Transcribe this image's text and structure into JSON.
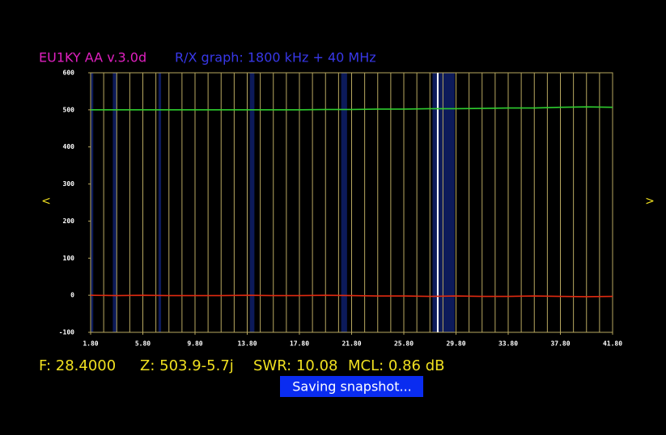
{
  "chart_data": {
    "type": "line",
    "title": "EU1KY AA v.3.0d",
    "subtitle": "R/X graph: 1800 kHz + 40 MHz",
    "x": [
      1.8,
      3.8,
      5.8,
      7.8,
      9.8,
      11.8,
      13.8,
      15.8,
      17.8,
      19.8,
      21.8,
      23.8,
      25.8,
      27.8,
      29.8,
      31.8,
      33.8,
      35.8,
      37.8,
      39.8,
      41.8
    ],
    "series": [
      {
        "name": "R",
        "color": "#2ecc2e",
        "values": [
          500,
          500,
          500,
          500,
          500,
          500,
          500,
          500,
          500,
          501,
          501,
          502,
          502,
          503,
          503,
          504,
          505,
          505,
          507,
          508,
          507
        ]
      },
      {
        "name": "X",
        "color": "#e02a10",
        "values": [
          0,
          -1,
          0,
          -1,
          -1,
          -1,
          0,
          -1,
          -1,
          0,
          -1,
          -2,
          -2,
          -3,
          -2,
          -3,
          -3,
          -2,
          -3,
          -4,
          -3
        ]
      }
    ],
    "xlim": [
      1.8,
      41.8
    ],
    "xticks": [
      {
        "value": 1.8,
        "label": "1.80"
      },
      {
        "value": 5.8,
        "label": "5.80"
      },
      {
        "value": 9.8,
        "label": "9.80"
      },
      {
        "value": 13.8,
        "label": "13.80"
      },
      {
        "value": 17.8,
        "label": "17.80"
      },
      {
        "value": 21.8,
        "label": "21.80"
      },
      {
        "value": 25.8,
        "label": "25.80"
      },
      {
        "value": 29.8,
        "label": "29.80"
      },
      {
        "value": 33.8,
        "label": "33.80"
      },
      {
        "value": 37.8,
        "label": "37.80"
      },
      {
        "value": 41.8,
        "label": "41.80"
      }
    ],
    "xgrid_step": 1,
    "ylim": [
      -100,
      600
    ],
    "yticks": [
      -100,
      0,
      100,
      200,
      300,
      400,
      500,
      600
    ],
    "bands": [
      [
        1.8,
        2.0
      ],
      [
        3.5,
        3.8
      ],
      [
        7.0,
        7.2
      ],
      [
        14.0,
        14.35
      ],
      [
        21.0,
        21.45
      ],
      [
        28.0,
        29.7
      ]
    ],
    "band_color": "#0c1a5a",
    "cursor_x": 28.4,
    "grid_color": "#b8a860"
  },
  "nav": {
    "left": "<",
    "right": ">"
  },
  "status": {
    "frequency": "F: 28.4000",
    "impedance": "Z: 503.9-5.7j",
    "swr": "SWR: 10.08",
    "mcl": "MCL: 0.86 dB"
  },
  "toast": "Saving snapshot..."
}
